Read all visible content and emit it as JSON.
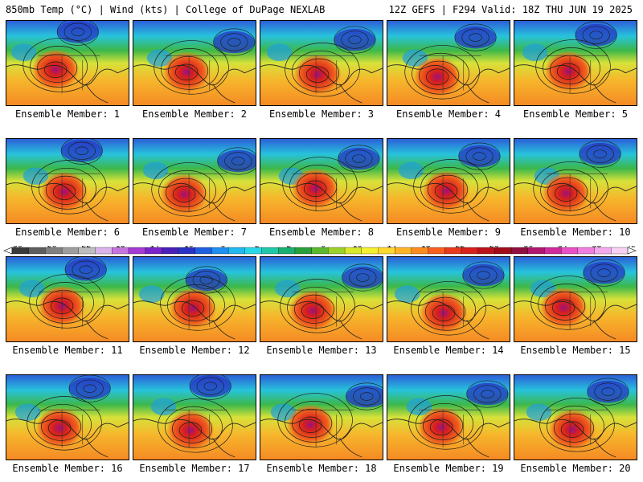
{
  "header": {
    "left_text": "850mb Temp (°C) | Wind (kts) | College of DuPage NEXLAB",
    "right_text": "12Z GEFS | F294 Valid: 18Z THU JUN 19 2025"
  },
  "panels": [
    {
      "label": "Ensemble Member: 1"
    },
    {
      "label": "Ensemble Member: 2"
    },
    {
      "label": "Ensemble Member: 3"
    },
    {
      "label": "Ensemble Member: 4"
    },
    {
      "label": "Ensemble Member: 5"
    },
    {
      "label": "Ensemble Member: 6"
    },
    {
      "label": "Ensemble Member: 7"
    },
    {
      "label": "Ensemble Member: 8"
    },
    {
      "label": "Ensemble Member: 9"
    },
    {
      "label": "Ensemble Member: 10"
    },
    {
      "label": "Ensemble Member: 11"
    },
    {
      "label": "Ensemble Member: 12"
    },
    {
      "label": "Ensemble Member: 13"
    },
    {
      "label": "Ensemble Member: 14"
    },
    {
      "label": "Ensemble Member: 15"
    },
    {
      "label": "Ensemble Member: 16"
    },
    {
      "label": "Ensemble Member: 17"
    },
    {
      "label": "Ensemble Member: 18"
    },
    {
      "label": "Ensemble Member: 19"
    },
    {
      "label": "Ensemble Member: 20"
    }
  ],
  "colorbar": {
    "labels": [
      "-30",
      "-26",
      "-22",
      "-18",
      "-14",
      "-10",
      "-6",
      "-2",
      "2",
      "6",
      "10",
      "14",
      "18",
      "22",
      "26",
      "30",
      "34",
      "38",
      "42"
    ],
    "colors": [
      "#3a3a3a",
      "#5e5e5e",
      "#808080",
      "#9e9e9e",
      "#bdbdbd",
      "#d9b3ea",
      "#c774e0",
      "#a63ad4",
      "#7a24c9",
      "#4b20b8",
      "#2b33c6",
      "#1f5fe0",
      "#1f8ff0",
      "#22b8f0",
      "#28d8e8",
      "#20c8a8",
      "#18b070",
      "#2aa03a",
      "#5cb82e",
      "#9ad22a",
      "#d8e82a",
      "#f4f030",
      "#ffd830",
      "#ffb428",
      "#ff8c20",
      "#f86020",
      "#e83a1c",
      "#d8201c",
      "#bc141c",
      "#a00e1a",
      "#901040",
      "#b01870",
      "#d02a9c",
      "#e850c4",
      "#f07ee0",
      "#f4a8ee",
      "#f8d0f4"
    ]
  }
}
